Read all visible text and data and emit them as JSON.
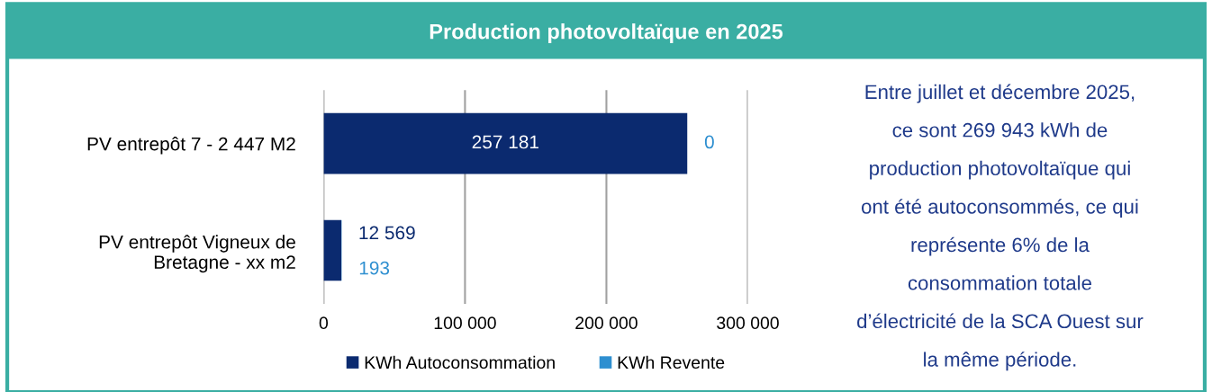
{
  "chart_data": [
    {
      "type": "bar",
      "title": "Production photovoltaïque en 2025",
      "orientation": "horizontal",
      "stacked": true,
      "categories": [
        "PV entrepôt 7 - 2 447 M2",
        "PV entrepôt Vigneux de\nBretagne - xx m2"
      ],
      "series": [
        {
          "name": "KWh Autoconsommation",
          "color": "#0b2a6f",
          "values": [
            257181,
            12569
          ],
          "value_labels": [
            "257 181",
            "12 569"
          ]
        },
        {
          "name": "KWh Revente",
          "color": "#2e8fd0",
          "values": [
            0,
            193
          ],
          "value_labels": [
            "0",
            "193"
          ]
        }
      ],
      "xlim": [
        0,
        300000
      ],
      "xticks": [
        0,
        {
          "value": 100000,
          "label": "100 000"
        },
        {
          "value": 200000,
          "label": "200 000"
        },
        {
          "value": 300000,
          "label": "300 000"
        }
      ],
      "grid": "x",
      "legend": "bottom"
    },
    {
      "type": "other",
      "annotations": [
        "Entre juillet et décembre 2025,",
        "ce sont 269 943 kWh de",
        "production photovoltaïque qui",
        "ont été autoconsommés, ce qui",
        "représente 6% de la",
        "consommation totale",
        "d’électricité de la SCA Ouest sur",
        "la même période."
      ]
    }
  ]
}
